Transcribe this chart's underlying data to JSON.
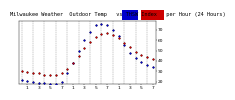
{
  "title": "Milwaukee Weather  Outdoor Temp   vs THSW Index   per Hour (24 Hours)",
  "background_color": "#ffffff",
  "grid_color": "#888888",
  "hours": [
    0,
    1,
    2,
    3,
    4,
    5,
    6,
    7,
    8,
    9,
    10,
    11,
    12,
    13,
    14,
    15,
    16,
    17,
    18,
    19,
    20,
    21,
    22,
    23
  ],
  "outdoor_temp": [
    30,
    29,
    28,
    28,
    27,
    27,
    27,
    28,
    32,
    38,
    45,
    52,
    58,
    63,
    66,
    67,
    65,
    62,
    57,
    53,
    49,
    46,
    44,
    42
  ],
  "thsw_index": [
    22,
    21,
    20,
    19,
    19,
    18,
    18,
    20,
    28,
    38,
    50,
    60,
    68,
    74,
    75,
    74,
    70,
    64,
    55,
    48,
    43,
    39,
    36,
    34
  ],
  "ylim": [
    18,
    78
  ],
  "ytick_values": [
    20,
    30,
    40,
    50,
    60,
    70
  ],
  "ytick_labels": [
    "20",
    "30",
    "40",
    "50",
    "60",
    "70"
  ],
  "xtick_values": [
    1,
    3,
    5,
    7,
    9,
    11,
    13,
    15,
    17,
    19,
    21,
    23
  ],
  "xtick_labels": [
    "1",
    "3",
    "5",
    "7",
    "1",
    "3",
    "5",
    "7",
    "1",
    "3",
    "5",
    "7"
  ],
  "vgrid_positions": [
    0,
    2,
    4,
    6,
    8,
    10,
    12,
    14,
    16,
    18,
    20,
    22
  ],
  "dot_size": 1.2,
  "title_fontsize": 3.8,
  "tick_fontsize": 3.2,
  "legend_blue_color": "#0000cc",
  "legend_red_color": "#cc0000",
  "temp_color": "#cc0000",
  "thsw_color": "#0000cc",
  "black_color": "#000000"
}
